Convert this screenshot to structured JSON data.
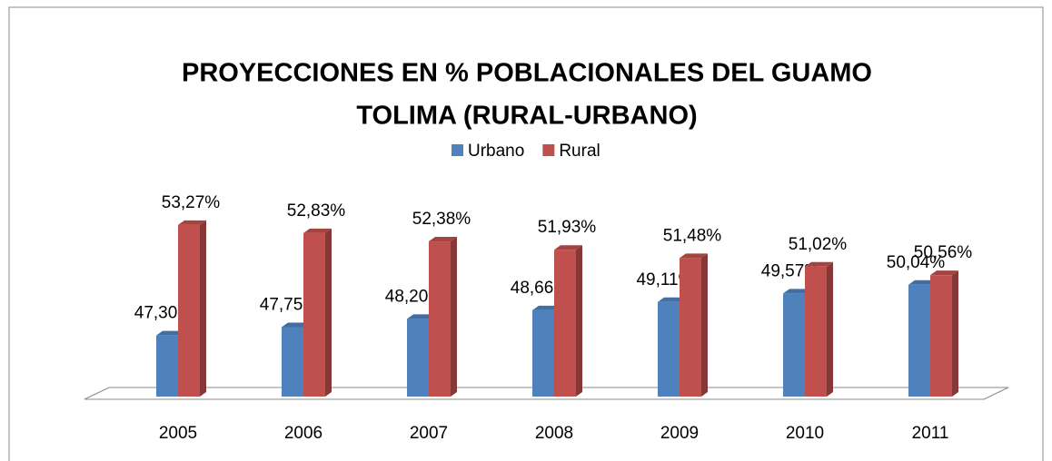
{
  "chart_data": {
    "type": "bar3d",
    "title": [
      "PROYECCIONES EN  % POBLACIONALES  DEL GUAMO",
      "TOLIMA (RURAL-URBANO)"
    ],
    "categories": [
      "2005",
      "2006",
      "2007",
      "2008",
      "2009",
      "2010",
      "2011"
    ],
    "ylim": [
      44,
      54
    ],
    "legend": "top",
    "series": [
      {
        "name": "Urbano",
        "color": "#4f81bd",
        "values": [
          47.3,
          47.75,
          48.2,
          48.66,
          49.11,
          49.57,
          50.04
        ],
        "value_labels": [
          "47,30%",
          "47,75%",
          "48,20%",
          "48,66%",
          "49,11%",
          "49,57%",
          "50,04%"
        ]
      },
      {
        "name": "Rural",
        "color": "#c0504d",
        "values": [
          53.27,
          52.83,
          52.38,
          51.93,
          51.48,
          51.02,
          50.56
        ],
        "value_labels": [
          "53,27%",
          "52,83%",
          "52,38%",
          "51,93%",
          "51,48%",
          "51,02%",
          "50,56%"
        ]
      }
    ]
  }
}
